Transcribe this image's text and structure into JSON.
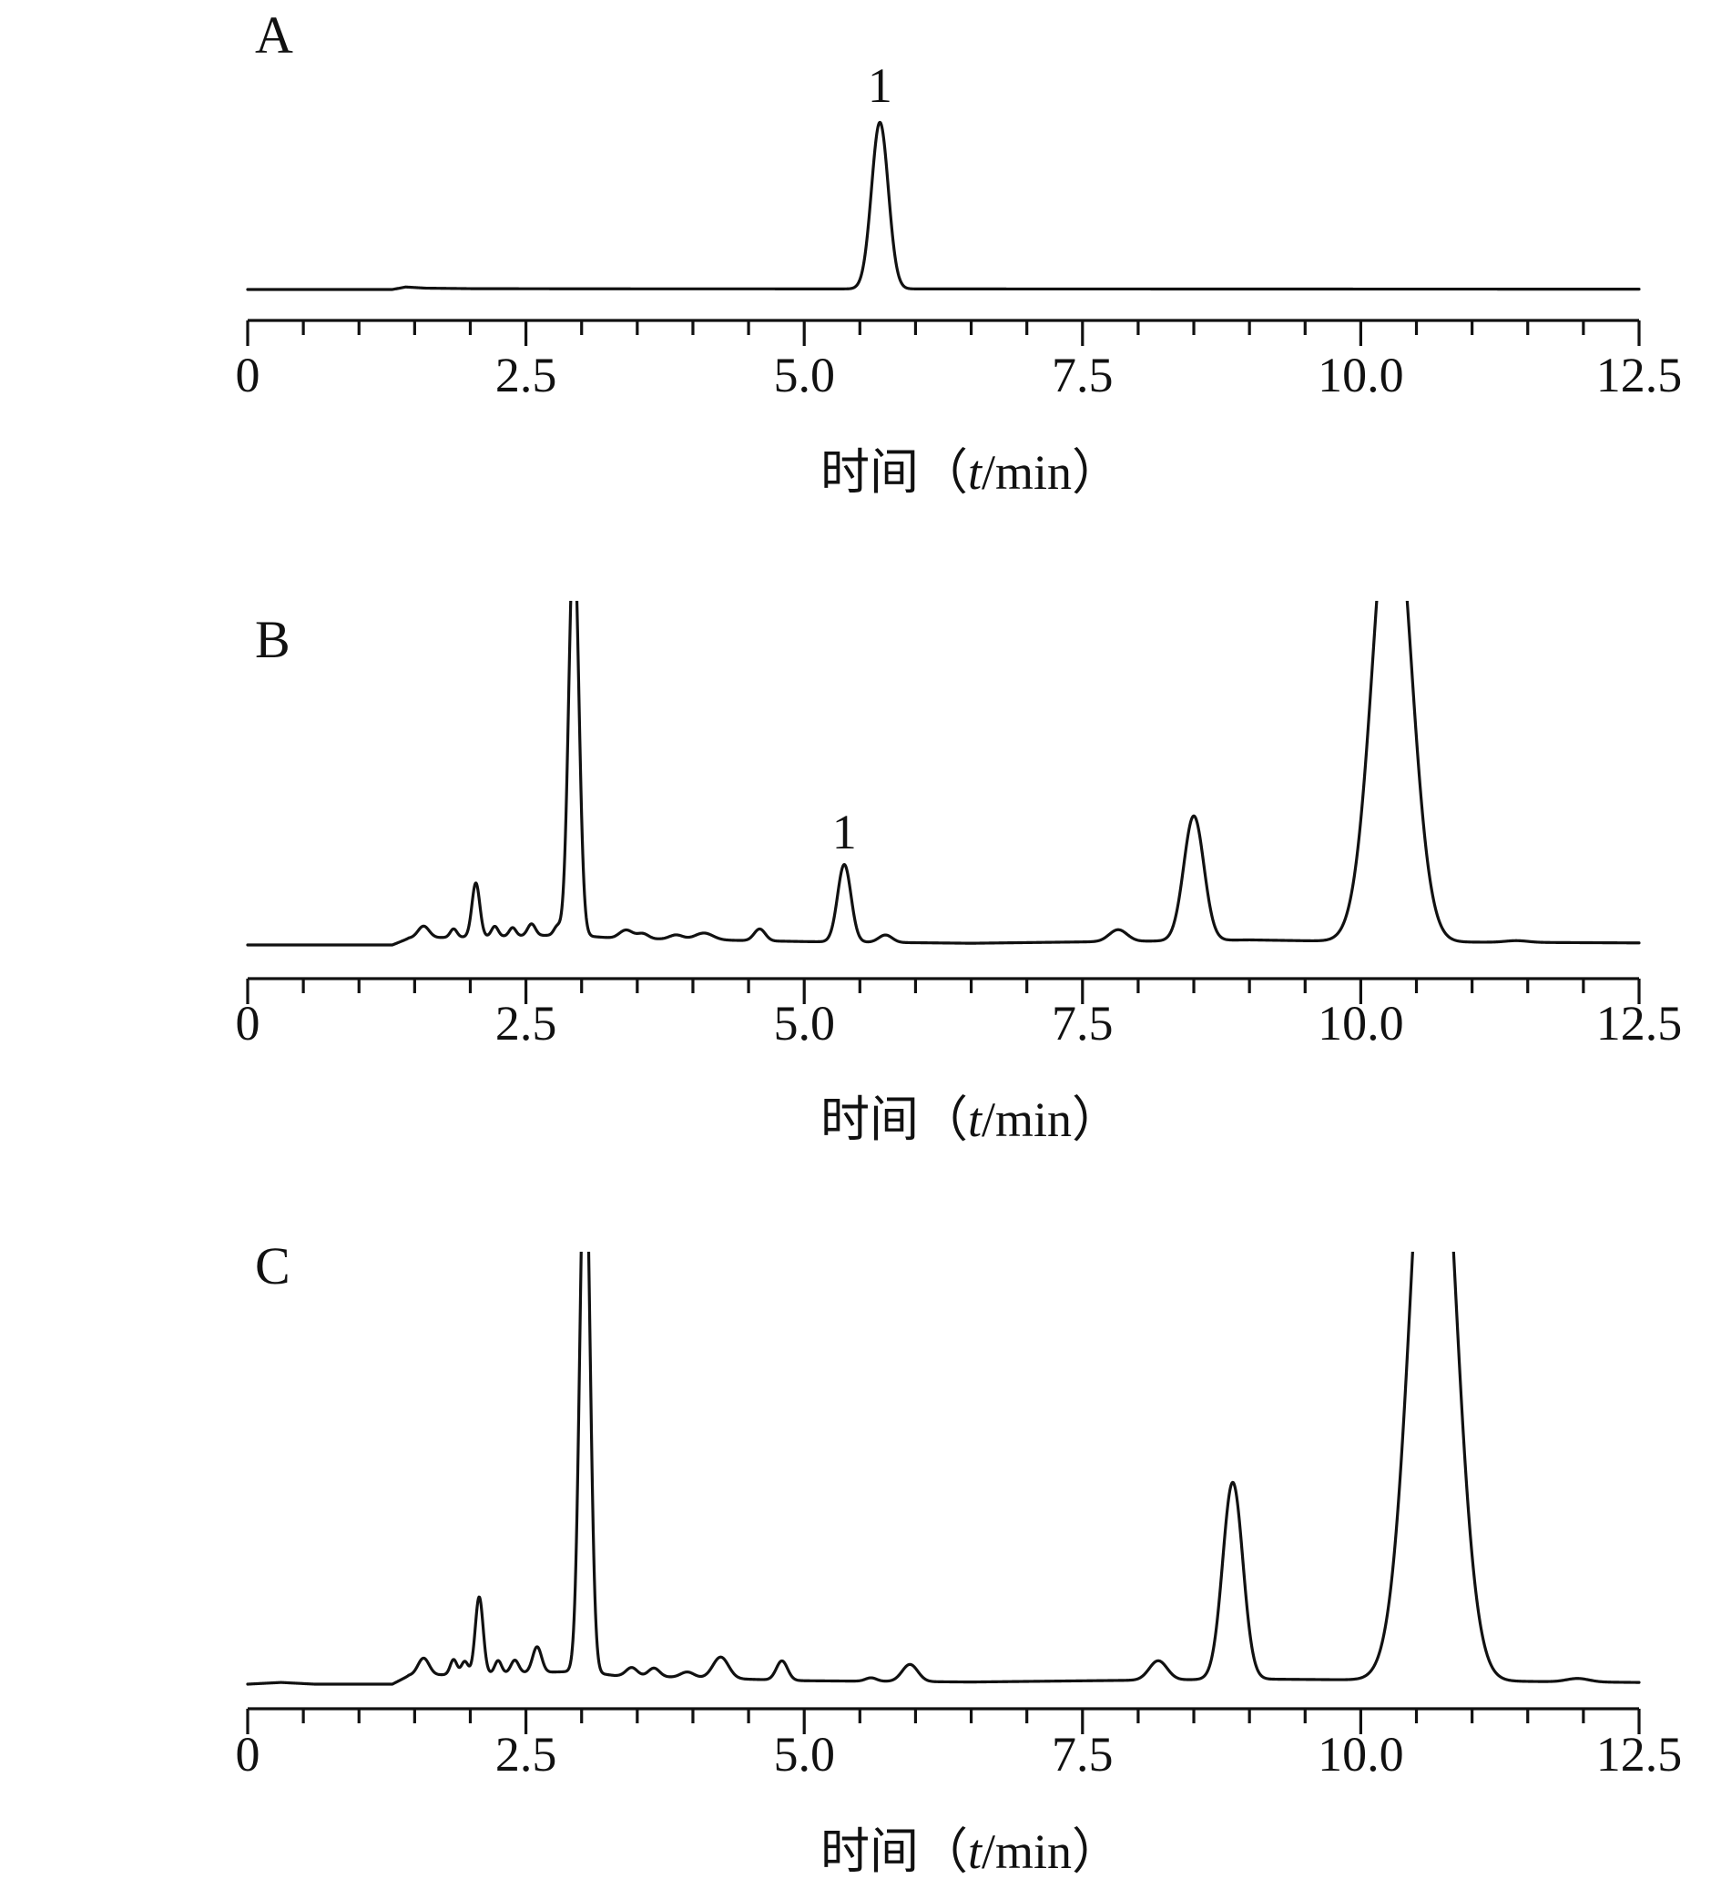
{
  "chart_data": [
    {
      "type": "line",
      "panel_label": "A",
      "xlabel": "时间（t/min）",
      "xlabel_parts": {
        "prefix": "时间（",
        "italic": "t",
        "suffix": "/min）"
      },
      "xlim": [
        0,
        12.5
      ],
      "x_ticks": [
        "0",
        "2.5",
        "5.0",
        "7.5",
        "10.0",
        "12.5"
      ],
      "x_ticks_values": [
        0,
        2.5,
        5.0,
        7.5,
        10.0,
        12.5
      ],
      "minor_tick_step": 0.5,
      "ylim": [
        0,
        100
      ],
      "clip_top": false,
      "baseline": [
        [
          0,
          0
        ],
        [
          1.3,
          0
        ],
        [
          1.42,
          1.5
        ],
        [
          1.6,
          0.8
        ],
        [
          2.0,
          0.5
        ],
        [
          3.0,
          0.4
        ],
        [
          12.5,
          0.2
        ]
      ],
      "peaks": [
        {
          "rt": 5.68,
          "height": 100,
          "sigma": 0.075
        }
      ],
      "annotations": [
        {
          "text": "1",
          "x": 5.68
        }
      ]
    },
    {
      "type": "line",
      "panel_label": "B",
      "xlabel": "时间（t/min）",
      "xlabel_parts": {
        "prefix": "时间（",
        "italic": "t",
        "suffix": "/min）"
      },
      "xlim": [
        0,
        12.5
      ],
      "x_ticks": [
        "0",
        "2.5",
        "5.0",
        "7.5",
        "10.0",
        "12.5"
      ],
      "x_ticks_values": [
        0,
        2.5,
        5.0,
        7.5,
        10.0,
        12.5
      ],
      "minor_tick_step": 0.5,
      "ylim": [
        0,
        100
      ],
      "clip_top": true,
      "baseline": [
        [
          0,
          0
        ],
        [
          1.3,
          0
        ],
        [
          1.45,
          2
        ],
        [
          2.9,
          3
        ],
        [
          3.3,
          2
        ],
        [
          5.0,
          1
        ],
        [
          6.5,
          0.5
        ],
        [
          9.0,
          1.5
        ],
        [
          10.0,
          1
        ],
        [
          12.5,
          0.6
        ]
      ],
      "peaks": [
        {
          "rt": 1.58,
          "height": 3.5,
          "sigma": 0.05
        },
        {
          "rt": 1.85,
          "height": 2.5,
          "sigma": 0.03
        },
        {
          "rt": 2.05,
          "height": 16,
          "sigma": 0.035
        },
        {
          "rt": 2.22,
          "height": 3,
          "sigma": 0.03
        },
        {
          "rt": 2.38,
          "height": 2.5,
          "sigma": 0.03
        },
        {
          "rt": 2.55,
          "height": 3.5,
          "sigma": 0.035
        },
        {
          "rt": 2.78,
          "height": 2.5,
          "sigma": 0.03
        },
        {
          "rt": 2.93,
          "height": 120,
          "sigma": 0.045
        },
        {
          "rt": 3.4,
          "height": 2.5,
          "sigma": 0.06
        },
        {
          "rt": 3.55,
          "height": 1.5,
          "sigma": 0.05
        },
        {
          "rt": 3.85,
          "height": 1.3,
          "sigma": 0.06
        },
        {
          "rt": 4.1,
          "height": 2,
          "sigma": 0.08
        },
        {
          "rt": 4.6,
          "height": 3.5,
          "sigma": 0.05
        },
        {
          "rt": 5.36,
          "height": 23,
          "sigma": 0.06
        },
        {
          "rt": 5.73,
          "height": 2.2,
          "sigma": 0.06
        },
        {
          "rt": 7.82,
          "height": 3.5,
          "sigma": 0.08
        },
        {
          "rt": 8.5,
          "height": 37,
          "sigma": 0.09
        },
        {
          "rt": 10.28,
          "height": 140,
          "sigma": 0.17
        },
        {
          "rt": 11.4,
          "height": 0.5,
          "sigma": 0.1
        }
      ],
      "annotations": [
        {
          "text": "1",
          "x": 5.36
        }
      ]
    },
    {
      "type": "line",
      "panel_label": "C",
      "xlabel": "时间（t/min）",
      "xlabel_parts": {
        "prefix": "时间（",
        "italic": "t",
        "suffix": "/min）"
      },
      "xlim": [
        0,
        12.5
      ],
      "x_ticks": [
        "0",
        "2.5",
        "5.0",
        "7.5",
        "10.0",
        "12.5"
      ],
      "x_ticks_values": [
        0,
        2.5,
        5.0,
        7.5,
        10.0,
        12.5
      ],
      "minor_tick_step": 0.5,
      "ylim": [
        0,
        100
      ],
      "clip_top": true,
      "baseline": [
        [
          0,
          0
        ],
        [
          0.3,
          0.4
        ],
        [
          0.6,
          0
        ],
        [
          1.3,
          0
        ],
        [
          1.45,
          2
        ],
        [
          3.0,
          3
        ],
        [
          3.3,
          2
        ],
        [
          5.0,
          0.8
        ],
        [
          6.5,
          0.5
        ],
        [
          9.0,
          1.2
        ],
        [
          10.0,
          1
        ],
        [
          12.5,
          0.4
        ]
      ],
      "peaks": [
        {
          "rt": 1.58,
          "height": 4,
          "sigma": 0.05
        },
        {
          "rt": 1.85,
          "height": 3.5,
          "sigma": 0.03
        },
        {
          "rt": 1.95,
          "height": 3,
          "sigma": 0.03
        },
        {
          "rt": 2.08,
          "height": 18,
          "sigma": 0.035
        },
        {
          "rt": 2.25,
          "height": 3,
          "sigma": 0.03
        },
        {
          "rt": 2.4,
          "height": 3,
          "sigma": 0.035
        },
        {
          "rt": 2.6,
          "height": 6,
          "sigma": 0.04
        },
        {
          "rt": 3.03,
          "height": 130,
          "sigma": 0.045
        },
        {
          "rt": 3.45,
          "height": 2,
          "sigma": 0.05
        },
        {
          "rt": 3.65,
          "height": 2,
          "sigma": 0.05
        },
        {
          "rt": 3.95,
          "height": 1.3,
          "sigma": 0.06
        },
        {
          "rt": 4.25,
          "height": 5,
          "sigma": 0.07
        },
        {
          "rt": 4.8,
          "height": 4.5,
          "sigma": 0.05
        },
        {
          "rt": 5.6,
          "height": 0.8,
          "sigma": 0.05
        },
        {
          "rt": 5.95,
          "height": 4,
          "sigma": 0.07
        },
        {
          "rt": 8.18,
          "height": 4.5,
          "sigma": 0.08
        },
        {
          "rt": 8.85,
          "height": 46,
          "sigma": 0.09
        },
        {
          "rt": 10.65,
          "height": 160,
          "sigma": 0.19
        },
        {
          "rt": 11.95,
          "height": 0.8,
          "sigma": 0.1
        }
      ],
      "annotations": []
    }
  ]
}
